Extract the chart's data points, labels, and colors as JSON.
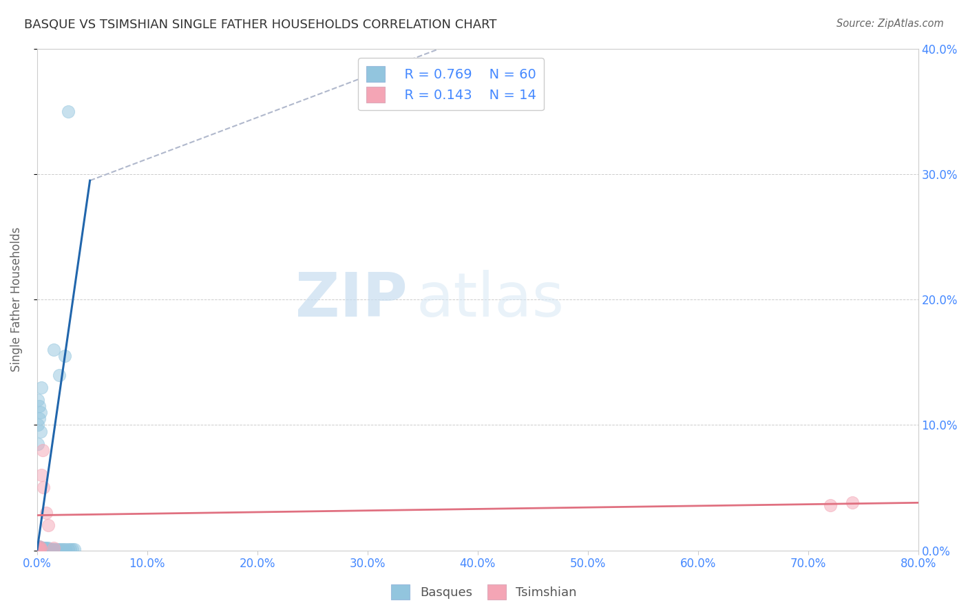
{
  "title": "BASQUE VS TSIMSHIAN SINGLE FATHER HOUSEHOLDS CORRELATION CHART",
  "source": "Source: ZipAtlas.com",
  "ylabel": "Single Father Households",
  "xlim": [
    0.0,
    0.8
  ],
  "ylim": [
    0.0,
    0.4
  ],
  "watermark_zip": "ZIP",
  "watermark_atlas": "atlas",
  "legend_blue_label": "Basques",
  "legend_pink_label": "Tsimshian",
  "legend_blue_R": "R = 0.769",
  "legend_blue_N": "N = 60",
  "legend_pink_R": "R = 0.143",
  "legend_pink_N": "N = 14",
  "blue_color": "#92c5de",
  "pink_color": "#f4a5b5",
  "blue_line_color": "#2166ac",
  "pink_line_color": "#e07080",
  "dash_color": "#b0b8cc",
  "scatter_blue": {
    "x": [
      0.001,
      0.001,
      0.001,
      0.001,
      0.002,
      0.002,
      0.002,
      0.002,
      0.002,
      0.003,
      0.003,
      0.003,
      0.003,
      0.003,
      0.004,
      0.004,
      0.004,
      0.004,
      0.005,
      0.005,
      0.005,
      0.005,
      0.006,
      0.006,
      0.006,
      0.007,
      0.007,
      0.008,
      0.008,
      0.009,
      0.009,
      0.01,
      0.01,
      0.011,
      0.012,
      0.013,
      0.014,
      0.015,
      0.016,
      0.018,
      0.02,
      0.022,
      0.024,
      0.026,
      0.028,
      0.03,
      0.032,
      0.034,
      0.001,
      0.001,
      0.001,
      0.002,
      0.002,
      0.003,
      0.003,
      0.004,
      0.015,
      0.02,
      0.025,
      0.028
    ],
    "y": [
      0.001,
      0.002,
      0.003,
      0.001,
      0.001,
      0.002,
      0.001,
      0.003,
      0.001,
      0.001,
      0.002,
      0.001,
      0.002,
      0.001,
      0.001,
      0.002,
      0.001,
      0.001,
      0.001,
      0.002,
      0.001,
      0.001,
      0.001,
      0.002,
      0.001,
      0.001,
      0.002,
      0.001,
      0.002,
      0.001,
      0.001,
      0.001,
      0.002,
      0.001,
      0.001,
      0.001,
      0.001,
      0.001,
      0.001,
      0.001,
      0.001,
      0.001,
      0.001,
      0.001,
      0.001,
      0.001,
      0.001,
      0.001,
      0.085,
      0.1,
      0.12,
      0.105,
      0.115,
      0.095,
      0.11,
      0.13,
      0.16,
      0.14,
      0.155,
      0.35
    ]
  },
  "scatter_pink": {
    "x": [
      0.001,
      0.001,
      0.002,
      0.002,
      0.003,
      0.003,
      0.004,
      0.005,
      0.006,
      0.008,
      0.01,
      0.015,
      0.72,
      0.74
    ],
    "y": [
      0.001,
      0.002,
      0.001,
      0.003,
      0.001,
      0.002,
      0.06,
      0.08,
      0.05,
      0.03,
      0.02,
      0.002,
      0.036,
      0.038
    ]
  },
  "blue_trendline_solid": {
    "x": [
      0.0,
      0.048
    ],
    "y": [
      0.0,
      0.295
    ]
  },
  "blue_trendline_dash": {
    "x": [
      0.048,
      0.38
    ],
    "y": [
      0.295,
      0.405
    ]
  },
  "pink_trendline": {
    "x": [
      0.0,
      0.8
    ],
    "y": [
      0.028,
      0.038
    ]
  }
}
